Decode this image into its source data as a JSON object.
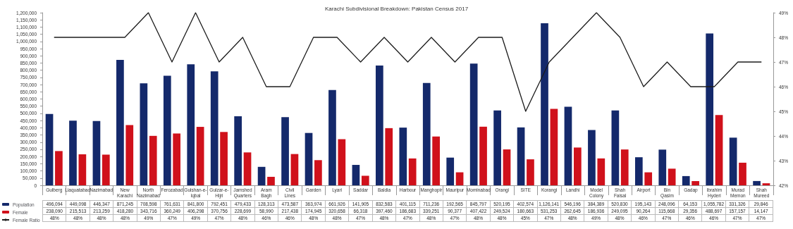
{
  "chart_data": {
    "type": "bar",
    "title": "Karachi Subdivisional Breakdown: Pakistan Census 2017",
    "categories": [
      "Gulberg",
      "Liaquatabad",
      "Nazimabad",
      "New Karachi",
      "North Nazimabad",
      "Ferozabad",
      "Gulshan-e-Iqbal",
      "Gulzar-e-Hijri",
      "Jamshed Quarters",
      "Aram Bagh",
      "Civil Lines",
      "Garden",
      "Lyari",
      "Saddar",
      "Baldia",
      "Harbour",
      "Manghopir",
      "Mauripur",
      "Mominabad",
      "Orangi",
      "SITE",
      "Korangi",
      "Landhi",
      "Model Colony",
      "Shah Faisal",
      "Airport",
      "Bin Qasim",
      "Gadap",
      "Ibrahim Hyderi",
      "Murad Memon",
      "Shah Mureed"
    ],
    "series": [
      {
        "name": "Population",
        "color": "#14296b",
        "values": [
          496094,
          449098,
          446347,
          871245,
          708598,
          761631,
          841800,
          792451,
          479433,
          128313,
          473587,
          363974,
          661926,
          141905,
          832583,
          401115,
          711236,
          192565,
          845797,
          520195,
          402574,
          1126141,
          546196,
          384389,
          520830,
          195143,
          248096,
          64153,
          1055782,
          331326,
          29846
        ],
        "value_labels": [
          "496,094",
          "449,098",
          "446,347",
          "871,245",
          "708,598",
          "761,631",
          "841,800",
          "792,451",
          "479,433",
          "128,313",
          "473,587",
          "363,974",
          "661,926",
          "141,905",
          "832,583",
          "401,115",
          "711,236",
          "192,565",
          "845,797",
          "520,195",
          "402,574",
          "1,126,141",
          "546,196",
          "384,389",
          "520,830",
          "195,143",
          "248,096",
          "64,153",
          "1,055,782",
          "331,326",
          "29,846"
        ]
      },
      {
        "name": "Female",
        "color": "#d0111b",
        "values": [
          238090,
          215513,
          213259,
          418280,
          343716,
          360249,
          406298,
          370756,
          228699,
          58990,
          217438,
          174945,
          320658,
          66318,
          397460,
          186683,
          339251,
          90377,
          407422,
          249524,
          180663,
          531253,
          262645,
          186936,
          249095,
          90264,
          115668,
          29356,
          488697,
          157157,
          14147
        ],
        "value_labels": [
          "238,090",
          "215,513",
          "213,259",
          "418,280",
          "343,716",
          "360,249",
          "406,298",
          "370,756",
          "228,699",
          "58,990",
          "217,438",
          "174,945",
          "320,658",
          "66,318",
          "397,460",
          "186,683",
          "339,251",
          "90,377",
          "407,422",
          "249,524",
          "180,663",
          "531,253",
          "262,645",
          "186,936",
          "249,095",
          "90,264",
          "115,668",
          "29,356",
          "488,697",
          "157,157",
          "14,147"
        ]
      },
      {
        "name": "Female Ratio",
        "type": "line",
        "axis": "y2",
        "color": "#1c1c1c",
        "values": [
          48,
          48,
          48,
          48,
          49,
          47,
          49,
          47,
          48,
          46,
          46,
          48,
          48,
          47,
          48,
          47,
          48,
          47,
          48,
          48,
          45,
          47,
          48,
          49,
          48,
          46,
          47,
          46,
          46,
          47,
          47
        ],
        "value_labels": [
          "48%",
          "48%",
          "48%",
          "48%",
          "49%",
          "47%",
          "49%",
          "47%",
          "48%",
          "46%",
          "46%",
          "48%",
          "48%",
          "47%",
          "48%",
          "47%",
          "48%",
          "47%",
          "48%",
          "48%",
          "45%",
          "47%",
          "48%",
          "49%",
          "48%",
          "46%",
          "47%",
          "46%",
          "46%",
          "47%",
          "47%"
        ]
      }
    ],
    "ylim": [
      0,
      1200000
    ],
    "yticks": [
      0,
      {
        "value": 50000,
        "label": "50,000"
      },
      {
        "value": 100000,
        "label": "100,000"
      },
      {
        "value": 150000,
        "label": "150,000"
      },
      {
        "value": 200000,
        "label": "200,000"
      },
      {
        "value": 250000,
        "label": "250,000"
      },
      {
        "value": 300000,
        "label": "300,000"
      },
      {
        "value": 350000,
        "label": "350,000"
      },
      {
        "value": 400000,
        "label": "400,000"
      },
      {
        "value": 450000,
        "label": "450,000"
      },
      {
        "value": 500000,
        "label": "500,000"
      },
      {
        "value": 550000,
        "label": "550,000"
      },
      {
        "value": 600000,
        "label": "600,000"
      },
      {
        "value": 650000,
        "label": "650,000"
      },
      {
        "value": 700000,
        "label": "700,000"
      },
      {
        "value": 750000,
        "label": "750,000"
      },
      {
        "value": 800000,
        "label": "800,000"
      },
      {
        "value": 850000,
        "label": "850,000"
      },
      {
        "value": 900000,
        "label": "900,000"
      },
      {
        "value": 950000,
        "label": "950,000"
      },
      {
        "value": 1000000,
        "label": "1,000,000"
      },
      {
        "value": 1050000,
        "label": "1,050,000"
      },
      {
        "value": 1100000,
        "label": "1,100,000"
      },
      {
        "value": 1150000,
        "label": "1,150,000"
      },
      {
        "value": 1200000,
        "label": "1,200,000"
      }
    ],
    "y2lim": [
      42,
      49
    ],
    "y2ticks": [
      {
        "value": 42,
        "label": "42%"
      },
      {
        "value": 43,
        "label": "43%"
      },
      {
        "value": 44,
        "label": "44%"
      },
      {
        "value": 45,
        "label": "45%"
      },
      {
        "value": 46,
        "label": "46%"
      },
      {
        "value": 47,
        "label": "47%"
      },
      {
        "value": 48,
        "label": "48%"
      },
      {
        "value": 49,
        "label": "49%"
      }
    ],
    "legend": "bottom left",
    "marker": "none"
  }
}
